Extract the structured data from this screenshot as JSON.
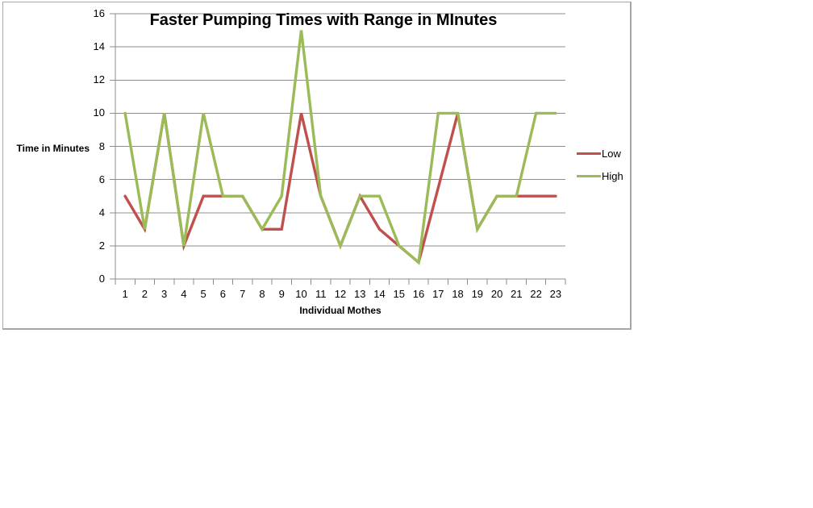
{
  "page": {
    "background": "#ffffff"
  },
  "chart": {
    "title": "Faster Pumping Times with Range in MInutes",
    "x_axis_title": "Individual Mothes",
    "y_axis_title": "Time in Minutes"
  },
  "chart_data": {
    "type": "line",
    "title": "Faster Pumping Times with Range in MInutes",
    "xlabel": "Individual Mothes",
    "ylabel": "Time in Minutes",
    "categories": [
      1,
      2,
      3,
      4,
      5,
      6,
      7,
      8,
      9,
      10,
      11,
      12,
      13,
      14,
      15,
      16,
      17,
      18,
      19,
      20,
      21,
      22,
      23
    ],
    "series": [
      {
        "name": "Low",
        "color": "#C0504D",
        "values": [
          5,
          3,
          10,
          2,
          5,
          5,
          5,
          3,
          3,
          10,
          5,
          2,
          5,
          3,
          2,
          1,
          5.5,
          10,
          3,
          5,
          5,
          5,
          5
        ]
      },
      {
        "name": "High",
        "color": "#9BBB59",
        "values": [
          10,
          3,
          10,
          2,
          10,
          5,
          5,
          3,
          5,
          15,
          5,
          2,
          5,
          5,
          2,
          1,
          10,
          10,
          3,
          5,
          5,
          10,
          10
        ]
      }
    ],
    "ylim": [
      0,
      16
    ],
    "y_ticks": [
      0,
      2,
      4,
      6,
      8,
      10,
      12,
      14,
      16
    ],
    "grid": true,
    "legend_position": "right",
    "gridline_color": "#8c8c8c",
    "axis_color": "#8c8c8c",
    "text_color": "#000000"
  }
}
